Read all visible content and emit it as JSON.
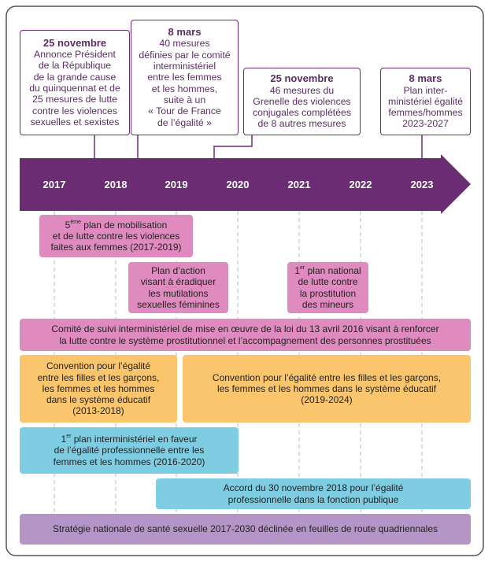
{
  "timeline": {
    "years": [
      "2017",
      "2018",
      "2019",
      "2020",
      "2021",
      "2022",
      "2023"
    ]
  },
  "callouts": [
    {
      "title": "25 novembre",
      "lines": [
        "Annonce Président",
        "de la République",
        "de la grande cause",
        "du quinquennat et de",
        "25 mesures de lutte",
        "contre les violences",
        "sexuelles et sexistes"
      ]
    },
    {
      "title": "8 mars",
      "lines": [
        "40 mesures",
        "définies par le comité",
        "interministériel",
        "entre les femmes",
        "et les hommes,",
        "suite à un",
        "« Tour de France",
        "de l’égalité »"
      ]
    },
    {
      "title": "25 novembre",
      "lines": [
        "46 mesures du",
        "Grenelle des violences",
        "conjugales complétées",
        "de 8 autres mesures"
      ]
    },
    {
      "title": "8 mars",
      "lines": [
        "Plan inter-",
        "ministériel égalité",
        "femmes/hommes",
        "2023-2027"
      ]
    }
  ],
  "boxes": [
    {
      "prefix": "5",
      "sup": "ème",
      "lines": [
        " plan de mobilisation",
        "et de lutte contre les violences",
        "faites aux femmes (2017-2019)"
      ]
    },
    {
      "lines": [
        "Plan d’action",
        "visant à éradiquer",
        "les mutilations",
        "sexuelles féminines"
      ]
    },
    {
      "prefix": "1",
      "sup": "er",
      "lines": [
        " plan national",
        "de lutte contre",
        "la prostitution",
        "des mineurs"
      ]
    },
    {
      "lines": [
        "Comité de suivi interministériel de mise en œuvre de la loi du 13 avril 2016 visant à renforcer",
        "la lutte contre le système prostitutionnel et l’accompagnement des personnes prostituées"
      ]
    },
    {
      "lines": [
        "Convention pour l’égalité",
        "entre les filles et les garçons,",
        "les femmes et les hommes",
        "dans le système éducatif",
        "(2013-2018)"
      ]
    },
    {
      "lines": [
        "Convention pour l’égalité entre les filles et les garçons,",
        "les femmes et les hommes dans le système éducatif",
        "(2019-2024)"
      ]
    },
    {
      "prefix": "1",
      "sup": "er",
      "lines": [
        " plan interministériel en faveur",
        "de l’égalité professionnelle entre les",
        "femmes et les hommes (2016-2020)"
      ]
    },
    {
      "lines": [
        "Accord du 30 novembre 2018 pour l’égalité",
        "professionnelle dans la fonction publique"
      ]
    },
    {
      "lines": [
        "Stratégie nationale de santé sexuelle 2017-2030 déclinée en feuilles de route quadriennales"
      ]
    }
  ]
}
